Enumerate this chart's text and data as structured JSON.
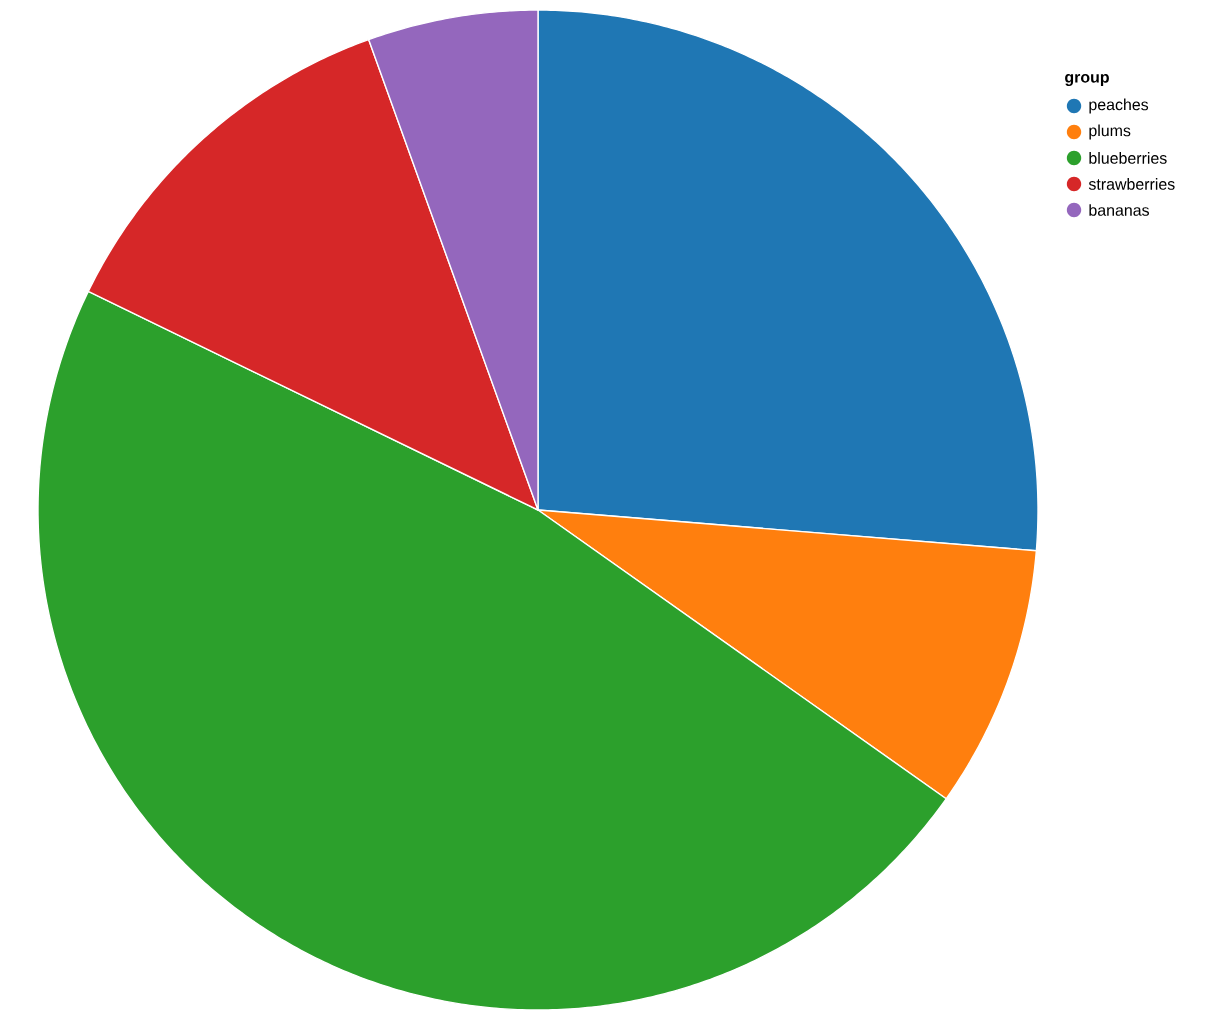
{
  "chart_data": {
    "type": "pie",
    "legend_title": "group",
    "legend": "top right",
    "categories": [
      "peaches",
      "plums",
      "blueberries",
      "strawberries",
      "bananas"
    ],
    "values": [
      26.3,
      8.5,
      47.4,
      12.3,
      5.5
    ],
    "colors": [
      "#1f77b4",
      "#ff7f0e",
      "#2ca02c",
      "#d62728",
      "#9467bd"
    ]
  }
}
